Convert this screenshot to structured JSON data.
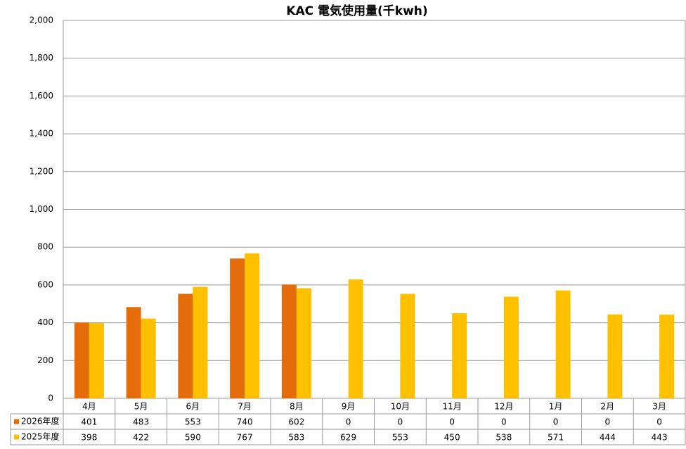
{
  "chart_data": {
    "type": "bar",
    "title": "KAC 電気使用量(千kwh)",
    "categories": [
      "4月",
      "5月",
      "6月",
      "7月",
      "8月",
      "9月",
      "10月",
      "11月",
      "12月",
      "1月",
      "2月",
      "3月"
    ],
    "series": [
      {
        "name": "2026年度",
        "color": "#e46c0a",
        "values": [
          401,
          483,
          553,
          740,
          602,
          0,
          0,
          0,
          0,
          0,
          0,
          0
        ]
      },
      {
        "name": "2025年度",
        "color": "#ffc000",
        "values": [
          398,
          422,
          590,
          767,
          583,
          629,
          553,
          450,
          538,
          571,
          444,
          443
        ]
      }
    ],
    "ylim": [
      0,
      2000
    ],
    "yticks": [
      0,
      200,
      400,
      600,
      800,
      {
        "value": 1000,
        "label": "1,000"
      },
      {
        "value": 1200,
        "label": "1,200"
      },
      {
        "value": 1400,
        "label": "1,400"
      },
      {
        "value": 1600,
        "label": "1,600"
      },
      {
        "value": 1800,
        "label": "1,800"
      },
      {
        "value": 2000,
        "label": "2,000"
      }
    ],
    "grid": true
  }
}
